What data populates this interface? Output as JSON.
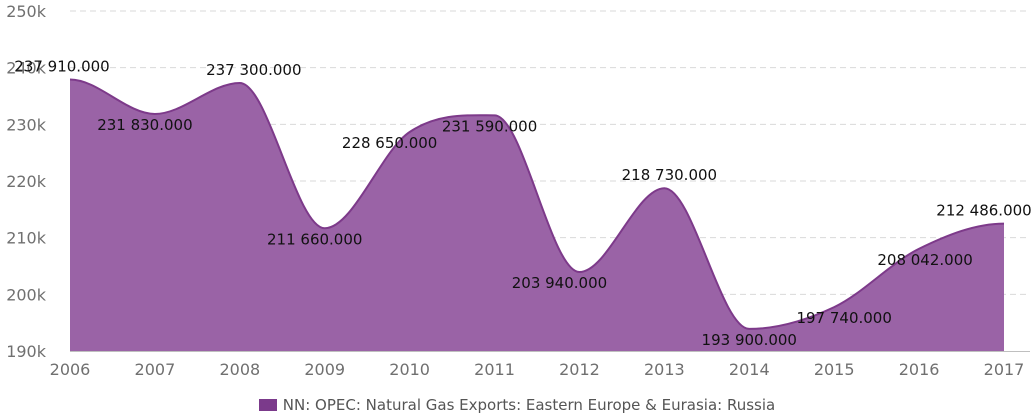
{
  "chart_data": {
    "type": "area",
    "title": "",
    "xlabel": "",
    "ylabel": "",
    "x": [
      "2006",
      "2007",
      "2008",
      "2009",
      "2010",
      "2011",
      "2012",
      "2013",
      "2014",
      "2015",
      "2016",
      "2017"
    ],
    "series": [
      {
        "name": "NN: OPEC: Natural Gas Exports: Eastern Europe & Eurasia: Russia",
        "values": [
          237910,
          231830,
          237300,
          211660,
          228650,
          231590,
          203940,
          218730,
          193900,
          197740,
          208042,
          212486
        ],
        "labels": [
          "237 910.000",
          "231 830.000",
          "237 300.000",
          "211 660.000",
          "228 650.000",
          "231 590.000",
          "203 940.000",
          "218 730.000",
          "193 900.000",
          "197 740.000",
          "208 042.000",
          "212 486.000"
        ]
      }
    ],
    "ylim": [
      190000,
      250000
    ],
    "y_ticks": [
      190000,
      200000,
      210000,
      220000,
      230000,
      240000,
      250000
    ],
    "y_tick_labels": [
      "190k",
      "200k",
      "210k",
      "220k",
      "230k",
      "240k",
      "250k"
    ],
    "grid": true,
    "legend_position": "bottom-center",
    "colors": {
      "fill": "#9a63a6",
      "stroke": "#7d3a8a",
      "legend_swatch": "#7b3a8b"
    }
  }
}
